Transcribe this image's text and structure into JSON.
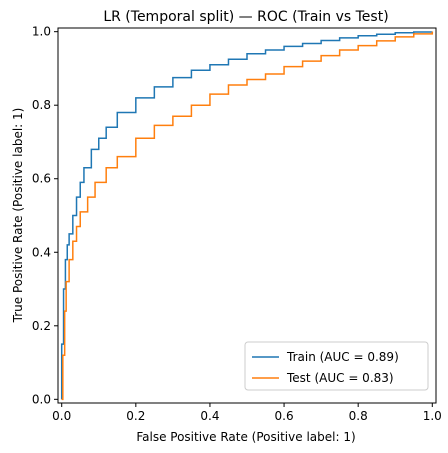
{
  "chart_data": {
    "type": "line",
    "title": "LR (Temporal split) — ROC (Train vs Test)",
    "xlabel": "False Positive Rate (Positive label: 1)",
    "ylabel": "True Positive Rate (Positive label: 1)",
    "xlim": [
      -0.01,
      1.01
    ],
    "ylim": [
      -0.01,
      1.01
    ],
    "xticks": [
      0.0,
      0.2,
      0.4,
      0.6,
      0.8,
      1.0
    ],
    "yticks": [
      0.0,
      0.2,
      0.4,
      0.6,
      0.8,
      1.0
    ],
    "xtick_labels": [
      "0.0",
      "0.2",
      "0.4",
      "0.6",
      "0.8",
      "1.0"
    ],
    "ytick_labels": [
      "0.0",
      "0.2",
      "0.4",
      "0.6",
      "0.8",
      "1.0"
    ],
    "grid": false,
    "legend_position": "lower-right",
    "series": [
      {
        "name": "Train (AUC = 0.89)",
        "color": "#1f77b4",
        "x": [
          0.0,
          0.0,
          0.005,
          0.01,
          0.015,
          0.02,
          0.03,
          0.04,
          0.05,
          0.06,
          0.08,
          0.1,
          0.12,
          0.15,
          0.2,
          0.25,
          0.3,
          0.35,
          0.4,
          0.45,
          0.5,
          0.55,
          0.6,
          0.65,
          0.7,
          0.75,
          0.8,
          0.85,
          0.9,
          0.95,
          1.0
        ],
        "y": [
          0.0,
          0.15,
          0.3,
          0.38,
          0.42,
          0.45,
          0.5,
          0.55,
          0.59,
          0.63,
          0.68,
          0.71,
          0.74,
          0.78,
          0.82,
          0.85,
          0.875,
          0.895,
          0.91,
          0.925,
          0.94,
          0.95,
          0.96,
          0.968,
          0.976,
          0.983,
          0.989,
          0.993,
          0.997,
          0.999,
          1.0
        ]
      },
      {
        "name": "Test (AUC = 0.83)",
        "color": "#ff7f0e",
        "x": [
          0.0,
          0.003,
          0.008,
          0.012,
          0.02,
          0.03,
          0.04,
          0.05,
          0.07,
          0.09,
          0.12,
          0.15,
          0.2,
          0.25,
          0.3,
          0.35,
          0.4,
          0.45,
          0.5,
          0.55,
          0.6,
          0.65,
          0.7,
          0.75,
          0.8,
          0.85,
          0.9,
          0.95,
          1.0
        ],
        "y": [
          0.0,
          0.12,
          0.24,
          0.32,
          0.38,
          0.43,
          0.47,
          0.51,
          0.55,
          0.59,
          0.63,
          0.66,
          0.71,
          0.745,
          0.77,
          0.8,
          0.83,
          0.855,
          0.87,
          0.885,
          0.905,
          0.92,
          0.935,
          0.95,
          0.962,
          0.975,
          0.986,
          0.994,
          1.0
        ]
      }
    ]
  }
}
